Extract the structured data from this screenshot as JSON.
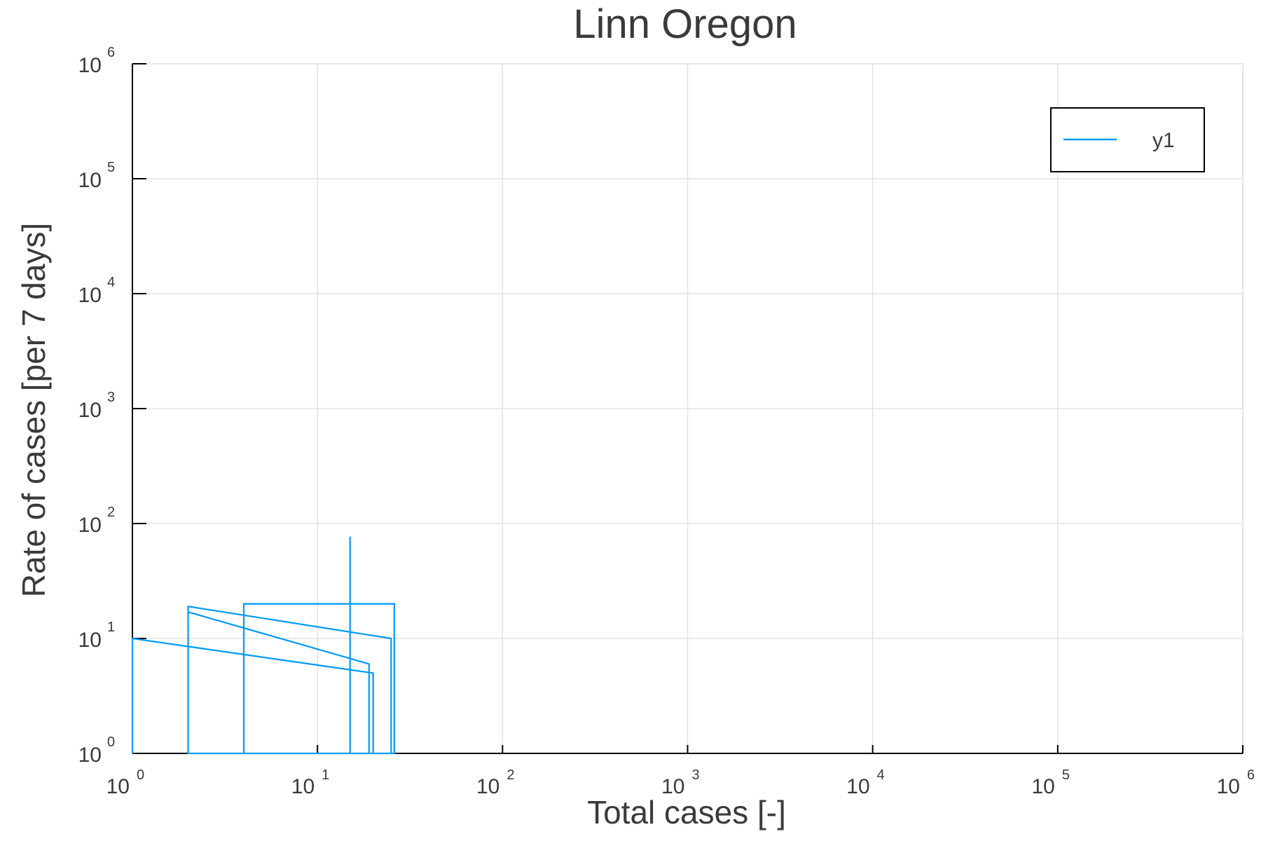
{
  "chart_data": {
    "type": "line",
    "title": "Linn Oregon",
    "xlabel": "Total cases [-]",
    "ylabel": "Rate of cases [per 7 days]",
    "xscale": "log",
    "yscale": "log",
    "xlim": [
      1,
      1000000
    ],
    "ylim": [
      1,
      1000000
    ],
    "grid": true,
    "legend_position": "top-right",
    "line_color": "#009af9",
    "x_ticks": [
      {
        "base": "10",
        "exp": "0"
      },
      {
        "base": "10",
        "exp": "1"
      },
      {
        "base": "10",
        "exp": "2"
      },
      {
        "base": "10",
        "exp": "3"
      },
      {
        "base": "10",
        "exp": "4"
      },
      {
        "base": "10",
        "exp": "5"
      },
      {
        "base": "10",
        "exp": "6"
      }
    ],
    "y_ticks": [
      {
        "base": "10",
        "exp": "0"
      },
      {
        "base": "10",
        "exp": "1"
      },
      {
        "base": "10",
        "exp": "2"
      },
      {
        "base": "10",
        "exp": "3"
      },
      {
        "base": "10",
        "exp": "4"
      },
      {
        "base": "10",
        "exp": "5"
      },
      {
        "base": "10",
        "exp": "6"
      }
    ],
    "series": [
      {
        "name": "y1",
        "x": [
          1,
          1,
          20,
          20,
          2,
          2,
          19,
          19,
          2,
          2,
          25,
          25,
          4,
          4,
          26,
          26,
          15,
          15
        ],
        "y": [
          1,
          10,
          5,
          1,
          1,
          17,
          6,
          1,
          1,
          19,
          10,
          1,
          1,
          20,
          20,
          1,
          1,
          77
        ]
      }
    ]
  }
}
